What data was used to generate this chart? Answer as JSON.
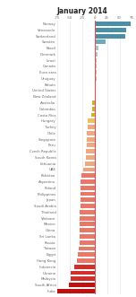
{
  "title": "January 2014",
  "countries": [
    "Norway",
    "Venezuela",
    "Switzerland",
    "Sweden",
    "Brazil",
    "Denmark",
    "Israel",
    "Canada",
    "Euro area",
    "Uruguay",
    "Britain",
    "United States",
    "New Zealand",
    "Australia",
    "Colombia",
    "Costa Rica",
    "Hungary",
    "Turkey",
    "Chile",
    "Singapore",
    "Peru",
    "Czech Republic",
    "South Korea",
    "Lithuania",
    "UAE",
    "Pakistan",
    "Argentina",
    "Poland",
    "Philippines",
    "Japan",
    "Saudi Arabia",
    "Thailand",
    "Vietnam",
    "Mexico",
    "China",
    "Sri Lanka",
    "Russia",
    "Taiwan",
    "Egypt",
    "Hong Kong",
    "Indonesia",
    "Ukraine",
    "Malaysia",
    "South Africa",
    "India"
  ],
  "values": [
    72,
    64,
    62,
    22,
    7,
    6,
    5,
    5,
    5,
    5,
    0,
    0,
    0,
    -5,
    -5,
    -6,
    -13,
    -14,
    -15,
    -15,
    -16,
    -17,
    -18,
    -19,
    -22,
    -27,
    -28,
    -28,
    -28,
    -28,
    -28,
    -29,
    -29,
    -29,
    -30,
    -30,
    -30,
    -31,
    -34,
    -35,
    -40,
    -47,
    -48,
    -52,
    -74
  ],
  "xlim": [
    -75,
    75
  ],
  "xticks": [
    -75,
    -50,
    -25,
    0,
    25,
    50,
    75
  ],
  "bg_color": "#ffffff",
  "grid_color": "#e0e0e0",
  "zero_line_color": "#e05050",
  "text_color": "#666666",
  "title_color": "#222222",
  "title_fontsize": 5.5,
  "label_fontsize": 2.8,
  "tick_fontsize": 2.8
}
